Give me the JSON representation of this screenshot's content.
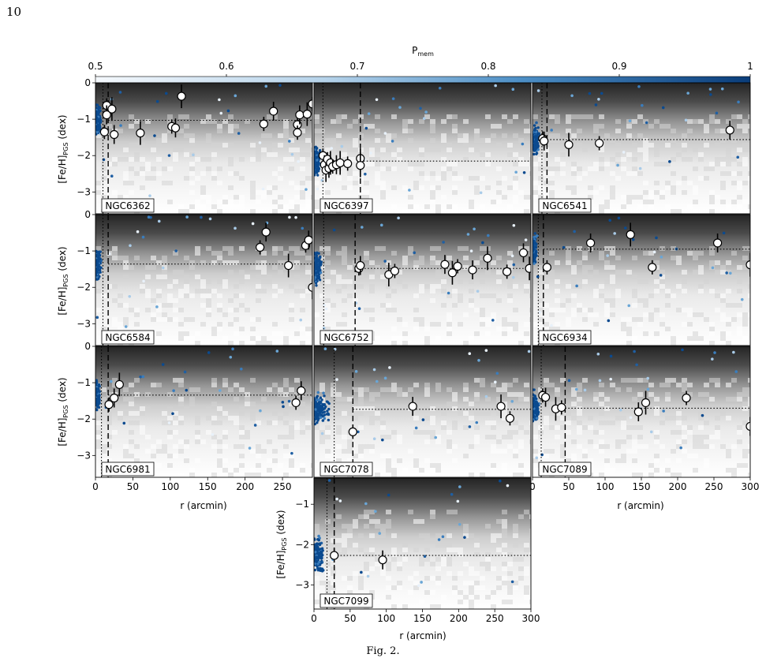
{
  "page_number": "10",
  "caption": "Fig. 2.",
  "colorbar": {
    "label": "P",
    "label_sub": "mem",
    "ticks": [
      0.5,
      0.6,
      0.7,
      0.8,
      0.9,
      1
    ],
    "tick_labels": [
      "0.5",
      "0.6",
      "0.7",
      "0.8",
      "0.9",
      "1"
    ],
    "range": [
      0.5,
      1
    ],
    "colors": {
      "low": "#f2f7fc",
      "high": "#0a3d7a"
    }
  },
  "colors": {
    "point_high": "#0b4a8f",
    "point_mid": "#4a8fc8",
    "point_low": "#e8f1fa",
    "median_line": "#000000"
  },
  "ylabel_main": "[Fe/H]",
  "ylabel_sub": "PGS",
  "ylabel_unit": " (dex)",
  "xlabel": "r (arcmin)",
  "chart_data": [
    {
      "type": "scatter",
      "title": "NGC6362",
      "xlim": [
        0,
        290
      ],
      "ylim": [
        -3.6,
        0
      ],
      "x_ticks_shown": false,
      "y_ticks": [
        0,
        -1,
        -2,
        -3
      ],
      "vline_dotted": 10,
      "vline_dashed": 17,
      "median_feh": -1.03,
      "stars": [
        [
          15,
          -0.62
        ],
        [
          15,
          -0.88
        ],
        [
          22,
          -0.72
        ],
        [
          12,
          -1.35
        ],
        [
          25,
          -1.42
        ],
        [
          60,
          -1.38
        ],
        [
          102,
          -1.2
        ],
        [
          107,
          -1.24
        ],
        [
          115,
          -0.37
        ],
        [
          225,
          -1.13
        ],
        [
          238,
          -0.78
        ],
        [
          270,
          -1.15
        ],
        [
          270,
          -1.37
        ],
        [
          273,
          -0.88
        ],
        [
          283,
          -0.86
        ],
        [
          290,
          -0.58
        ]
      ]
    },
    {
      "type": "scatter",
      "title": "NGC6397",
      "xlim": [
        0,
        290
      ],
      "ylim": [
        -3.6,
        0
      ],
      "x_ticks_shown": false,
      "y_ticks": [],
      "vline_dotted": 12,
      "vline_dashed": 62,
      "median_feh": -2.15,
      "stars": [
        [
          12,
          -2.0
        ],
        [
          14,
          -2.25
        ],
        [
          16,
          -2.4
        ],
        [
          18,
          -2.1
        ],
        [
          20,
          -2.35
        ],
        [
          22,
          -2.2
        ],
        [
          25,
          -2.3
        ],
        [
          30,
          -2.25
        ],
        [
          35,
          -2.2
        ],
        [
          45,
          -2.22
        ],
        [
          62,
          -2.08
        ],
        [
          62,
          -2.27
        ]
      ]
    },
    {
      "type": "scatter",
      "title": "NGC6541",
      "xlim": [
        0,
        300
      ],
      "ylim": [
        -3.6,
        0
      ],
      "x_ticks_shown": false,
      "y_ticks": [],
      "vline_dotted": 13,
      "vline_dashed": 20,
      "median_feh": -1.56,
      "stars": [
        [
          14,
          -1.53
        ],
        [
          16,
          -1.6
        ],
        [
          50,
          -1.7
        ],
        [
          92,
          -1.66
        ],
        [
          272,
          -1.3
        ]
      ]
    },
    {
      "type": "scatter",
      "title": "NGC6584",
      "xlim": [
        0,
        290
      ],
      "ylim": [
        -3.6,
        0
      ],
      "x_ticks_shown": false,
      "y_ticks": [
        0,
        -1,
        -2,
        -3
      ],
      "vline_dotted": 10,
      "vline_dashed": 17,
      "median_feh": -1.36,
      "stars": [
        [
          220,
          -0.9
        ],
        [
          228,
          -0.48
        ],
        [
          258,
          -1.4
        ],
        [
          281,
          -0.85
        ],
        [
          285,
          -0.7
        ],
        [
          290,
          -2.0
        ]
      ]
    },
    {
      "type": "scatter",
      "title": "NGC6752",
      "xlim": [
        0,
        290
      ],
      "ylim": [
        -3.6,
        0
      ],
      "x_ticks_shown": false,
      "y_ticks": [],
      "vline_dotted": 13,
      "vline_dashed": 55,
      "median_feh": -1.48,
      "stars": [
        [
          60,
          -1.48
        ],
        [
          62,
          -1.4
        ],
        [
          100,
          -1.65
        ],
        [
          108,
          -1.55
        ],
        [
          175,
          -1.37
        ],
        [
          185,
          -1.6
        ],
        [
          192,
          -1.42
        ],
        [
          212,
          -1.52
        ],
        [
          232,
          -1.2
        ],
        [
          258,
          -1.57
        ],
        [
          280,
          -1.05
        ],
        [
          288,
          -1.48
        ]
      ]
    },
    {
      "type": "scatter",
      "title": "NGC6934",
      "xlim": [
        0,
        300
      ],
      "ylim": [
        -3.6,
        0
      ],
      "x_ticks_shown": false,
      "y_ticks": [],
      "vline_dotted": 8,
      "vline_dashed": 15,
      "median_feh": -0.95,
      "stars": [
        [
          20,
          -1.45
        ],
        [
          80,
          -0.78
        ],
        [
          135,
          -0.55
        ],
        [
          165,
          -1.45
        ],
        [
          255,
          -0.78
        ],
        [
          300,
          -1.38
        ]
      ]
    },
    {
      "type": "scatter",
      "title": "NGC6981",
      "xlim": [
        0,
        290
      ],
      "ylim": [
        -3.6,
        0
      ],
      "x_ticks_shown": true,
      "x_ticks": [
        0,
        50,
        100,
        150,
        200,
        250
      ],
      "y_ticks": [
        0,
        -1,
        -2,
        -3
      ],
      "vline_dotted": 8,
      "vline_dashed": 17,
      "median_feh": -1.34,
      "stars": [
        [
          18,
          -1.6
        ],
        [
          25,
          -1.42
        ],
        [
          32,
          -1.05
        ],
        [
          268,
          -1.55
        ],
        [
          275,
          -1.22
        ]
      ]
    },
    {
      "type": "scatter",
      "title": "NGC7078",
      "xlim": [
        0,
        290
      ],
      "ylim": [
        -3.6,
        0
      ],
      "x_ticks_shown": false,
      "y_ticks": [],
      "vline_dotted": 27,
      "vline_dashed": 52,
      "median_feh": -1.73,
      "stars": [
        [
          52,
          -2.35
        ],
        [
          132,
          -1.65
        ],
        [
          250,
          -1.65
        ],
        [
          262,
          -1.98
        ]
      ]
    },
    {
      "type": "scatter",
      "title": "NGC7089",
      "xlim": [
        0,
        300
      ],
      "ylim": [
        -3.6,
        0
      ],
      "x_ticks_shown": true,
      "x_ticks": [
        0,
        50,
        100,
        150,
        200,
        250,
        300
      ],
      "y_ticks": [],
      "vline_dotted": 12,
      "vline_dashed": 45,
      "median_feh": -1.7,
      "stars": [
        [
          14,
          -1.35
        ],
        [
          18,
          -1.4
        ],
        [
          32,
          -1.72
        ],
        [
          40,
          -1.68
        ],
        [
          146,
          -1.8
        ],
        [
          156,
          -1.55
        ],
        [
          212,
          -1.42
        ],
        [
          300,
          -2.2
        ]
      ]
    },
    {
      "type": "scatter",
      "title": "NGC7099",
      "xlim": [
        0,
        300
      ],
      "ylim": [
        -3.6,
        -0.35
      ],
      "x_ticks_shown": true,
      "x_ticks": [
        0,
        50,
        100,
        150,
        200,
        250,
        300
      ],
      "y_ticks": [
        -1,
        -2,
        -3
      ],
      "vline_dotted": 18,
      "vline_dashed": 28,
      "median_feh": -2.27,
      "stars": [
        [
          28,
          -2.27
        ],
        [
          95,
          -2.38
        ]
      ]
    }
  ]
}
